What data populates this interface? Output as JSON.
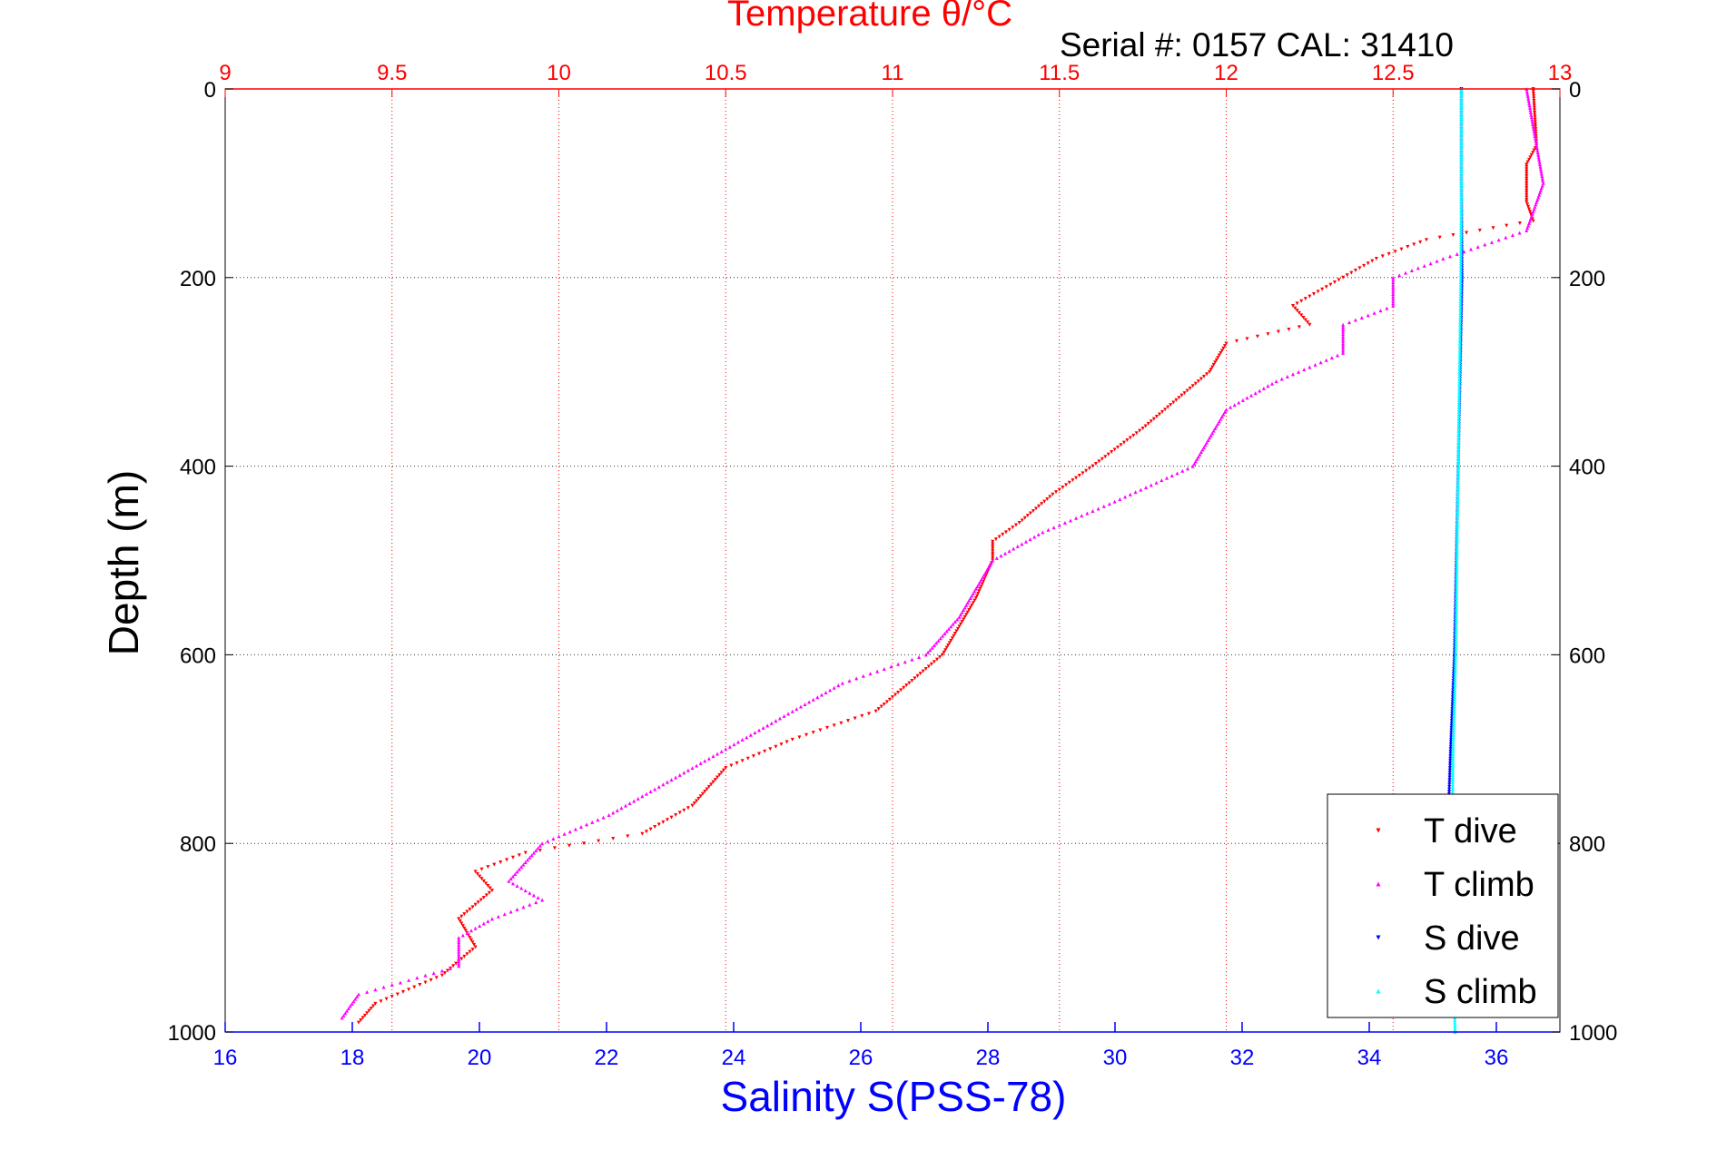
{
  "chart_data": {
    "type": "scatter",
    "title": "Temperature θ/°C",
    "subtitle": "Serial #: 0157  CAL: 31410",
    "ylabel": "Depth (m)",
    "xlabel_bottom": "Salinity S(PSS-78)",
    "xlabel_top": "Temperature θ/°C",
    "ylim": [
      0,
      1000
    ],
    "y_reversed": true,
    "y_ticks": [
      "0",
      "200",
      "400",
      "600",
      "800",
      "1000"
    ],
    "x_top": {
      "lim": [
        9,
        13
      ],
      "ticks": [
        "9",
        "9.5",
        "10",
        "10.5",
        "11",
        "11.5",
        "12",
        "12.5",
        "13"
      ]
    },
    "x_bottom": {
      "lim": [
        16,
        37
      ],
      "ticks": [
        "16",
        "18",
        "20",
        "22",
        "24",
        "26",
        "28",
        "30",
        "32",
        "34",
        "36"
      ]
    },
    "grid": true,
    "legend_position": "bottom-right",
    "series": [
      {
        "name": "T dive",
        "axis": "top",
        "color": "#ff0000",
        "marker": "triangle-down",
        "depth": [
          0,
          60,
          80,
          120,
          140,
          160,
          180,
          200,
          230,
          250,
          270,
          300,
          330,
          360,
          400,
          430,
          460,
          480,
          500,
          540,
          570,
          600,
          630,
          660,
          690,
          720,
          760,
          790,
          810,
          830,
          850,
          880,
          910,
          940,
          970,
          990
        ],
        "values": [
          12.92,
          12.93,
          12.9,
          12.9,
          12.92,
          12.6,
          12.45,
          12.35,
          12.2,
          12.25,
          12.0,
          11.95,
          11.85,
          11.75,
          11.6,
          11.48,
          11.38,
          11.3,
          11.3,
          11.25,
          11.2,
          11.15,
          11.05,
          10.95,
          10.7,
          10.5,
          10.4,
          10.25,
          9.9,
          9.75,
          9.8,
          9.7,
          9.75,
          9.65,
          9.45,
          9.4
        ]
      },
      {
        "name": "T climb",
        "axis": "top",
        "color": "#ff00ff",
        "marker": "triangle-up",
        "depth": [
          0,
          100,
          150,
          180,
          200,
          230,
          250,
          280,
          310,
          340,
          370,
          400,
          440,
          470,
          500,
          530,
          560,
          600,
          630,
          660,
          700,
          740,
          770,
          800,
          820,
          840,
          860,
          880,
          900,
          930,
          960,
          985
        ],
        "values": [
          12.9,
          12.95,
          12.9,
          12.65,
          12.5,
          12.5,
          12.35,
          12.35,
          12.15,
          12.0,
          11.95,
          11.9,
          11.65,
          11.45,
          11.3,
          11.25,
          11.2,
          11.1,
          10.85,
          10.7,
          10.5,
          10.3,
          10.15,
          9.95,
          9.9,
          9.85,
          9.95,
          9.8,
          9.7,
          9.7,
          9.4,
          9.35
        ]
      },
      {
        "name": "S dive",
        "axis": "bottom",
        "color": "#0000ff",
        "marker": "triangle-down",
        "depth": [
          0,
          100,
          200,
          300,
          400,
          500,
          600,
          700,
          760
        ],
        "values": [
          35.45,
          35.45,
          35.46,
          35.43,
          35.4,
          35.37,
          35.34,
          35.28,
          35.25
        ]
      },
      {
        "name": "S climb",
        "axis": "bottom",
        "color": "#00ffff",
        "marker": "triangle-up",
        "depth": [
          0,
          100,
          200,
          300,
          400,
          500,
          600,
          700,
          800,
          900,
          1000
        ],
        "values": [
          35.45,
          35.45,
          35.44,
          35.42,
          35.4,
          35.38,
          35.36,
          35.32,
          35.3,
          35.32,
          35.35
        ]
      }
    ]
  }
}
